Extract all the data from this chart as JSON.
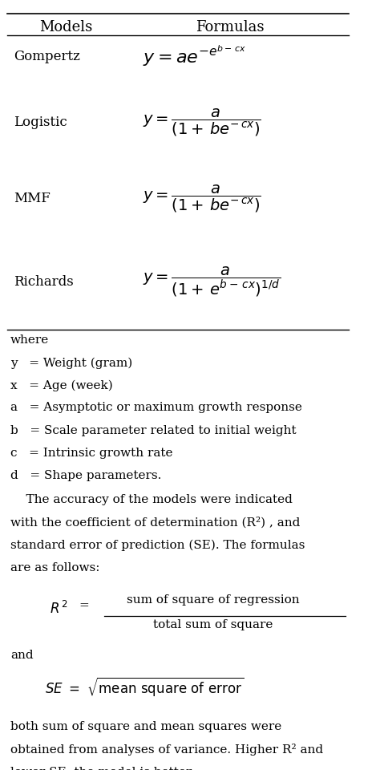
{
  "bg_color": "#ffffff",
  "fig_width": 4.74,
  "fig_height": 9.6,
  "dpi": 100,
  "header_models": "Models",
  "header_formulas": "Formulas",
  "where_lines": [
    "where",
    "y   = Weight (gram)",
    "x   = Age (week)",
    "a   = Asymptotic or maximum growth response",
    "b   = Scale parameter related to initial weight",
    "c   = Intrinsic growth rate",
    "d   = Shape parameters."
  ],
  "r2_formula_num": "sum of square of regression",
  "r2_formula_den": "total sum of square",
  "and_text": "and",
  "font_size_header": 13,
  "font_size_model": 12,
  "font_size_formula": 13,
  "font_size_text": 11
}
